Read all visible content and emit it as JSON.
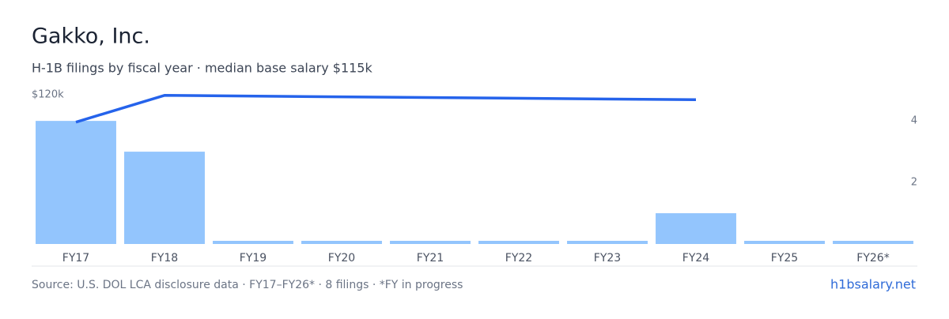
{
  "chart_data": {
    "type": "bar",
    "title": "Gakko, Inc.",
    "subtitle": "H-1B filings by fiscal year · median base salary $115k",
    "categories": [
      "FY17",
      "FY18",
      "FY19",
      "FY20",
      "FY21",
      "FY22",
      "FY23",
      "FY24",
      "FY25",
      "FY26*"
    ],
    "series": [
      {
        "type": "bar",
        "name": "H-1B filings",
        "color": "#93c5fd",
        "axis": "y2",
        "values": [
          4,
          3,
          0,
          0,
          0,
          0,
          0,
          1,
          0,
          0
        ]
      },
      {
        "type": "line",
        "name": "Median base salary",
        "color": "#2563eb",
        "x": [
          "FY17",
          "FY18",
          "FY24"
        ],
        "values": [
          98000,
          119500,
          116000
        ]
      }
    ],
    "ylim": [
      0,
      120000
    ],
    "yticks": [
      {
        "value": 120000,
        "label": "$120k"
      }
    ],
    "y2lim": [
      0,
      4.85
    ],
    "y2ticks": [
      2,
      4
    ],
    "source": "Source: U.S. DOL LCA disclosure data · FY17–FY26* · 8 filings · *FY in progress",
    "link": "h1bsalary.net"
  }
}
